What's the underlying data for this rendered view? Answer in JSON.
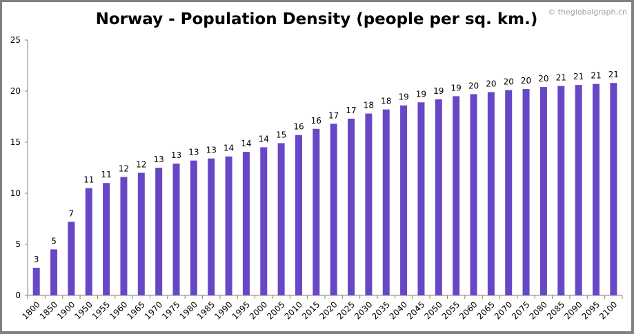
{
  "chart_data": {
    "type": "bar",
    "title": "Norway - Population Density (people per sq. km.)",
    "watermark": "© theglobalgraph.cn",
    "xlabel": "",
    "ylabel": "",
    "ylim": [
      0,
      25
    ],
    "yticks": [
      0,
      5,
      10,
      15,
      20,
      25
    ],
    "grid": false,
    "bar_color": "#6847C6",
    "categories": [
      "1800",
      "1850",
      "1900",
      "1950",
      "1955",
      "1960",
      "1965",
      "1970",
      "1975",
      "1980",
      "1985",
      "1990",
      "1995",
      "2000",
      "2005",
      "2010",
      "2015",
      "2020",
      "2025",
      "2030",
      "2035",
      "2040",
      "2045",
      "2050",
      "2055",
      "2060",
      "2065",
      "2070",
      "2075",
      "2080",
      "2085",
      "2090",
      "2095",
      "2100"
    ],
    "values": [
      2.7,
      4.5,
      7.2,
      10.5,
      11.0,
      11.6,
      12.0,
      12.5,
      12.9,
      13.2,
      13.4,
      13.6,
      14.05,
      14.5,
      14.9,
      15.7,
      16.3,
      16.8,
      17.3,
      17.8,
      18.2,
      18.6,
      18.9,
      19.2,
      19.5,
      19.7,
      19.9,
      20.1,
      20.2,
      20.4,
      20.5,
      20.6,
      20.7,
      20.8
    ],
    "data_labels": [
      "3",
      "5",
      "7",
      "11",
      "11",
      "12",
      "12",
      "13",
      "13",
      "13",
      "13",
      "14",
      "14",
      "14",
      "15",
      "16",
      "16",
      "17",
      "17",
      "18",
      "18",
      "19",
      "19",
      "19",
      "19",
      "20",
      "20",
      "20",
      "20",
      "20",
      "21",
      "21",
      "21",
      "21"
    ]
  }
}
